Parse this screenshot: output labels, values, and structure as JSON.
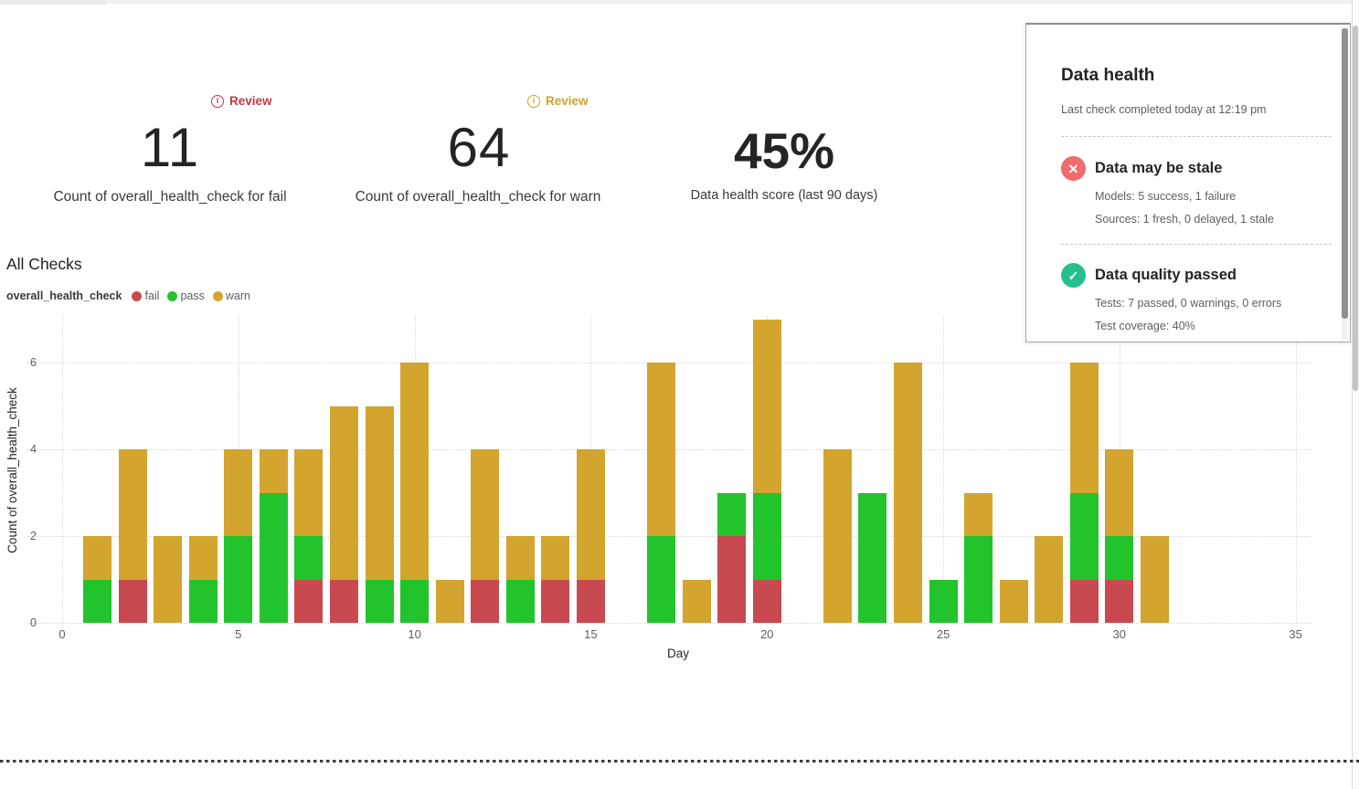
{
  "kpis": [
    {
      "badge": "Review",
      "badge_color": "#c13945",
      "value": "11",
      "label": "Count of overall_health_check for fail"
    },
    {
      "badge": "Review",
      "badge_color": "#cfa22a",
      "value": "64",
      "label": "Count of overall_health_check for warn"
    },
    {
      "value": "45%",
      "label": "Data health score (last 90 days)"
    }
  ],
  "chart": {
    "title": "All Checks",
    "series_label": "overall_health_check",
    "legend": [
      {
        "label": "fail",
        "color": "#c8494f"
      },
      {
        "label": "pass",
        "color": "#23c32b"
      },
      {
        "label": "warn",
        "color": "#d3a52e"
      }
    ],
    "xlabel": "Day",
    "ylabel": "Count of overall_health_check"
  },
  "chart_data": {
    "type": "bar",
    "stacked": true,
    "title": "All Checks",
    "xlabel": "Day",
    "ylabel": "Count of overall_health_check",
    "xlim": [
      0,
      35.5
    ],
    "ylim": [
      0,
      7
    ],
    "x_ticks": [
      0,
      5,
      10,
      15,
      20,
      25,
      30,
      35
    ],
    "y_ticks": [
      0,
      2,
      4,
      6
    ],
    "grid": true,
    "legend_position": "top-left",
    "categories": [
      1,
      2,
      3,
      4,
      5,
      6,
      7,
      8,
      9,
      10,
      11,
      12,
      13,
      14,
      15,
      16,
      17,
      18,
      19,
      20,
      21,
      22,
      23,
      24,
      25,
      26,
      27,
      28,
      29,
      30,
      31
    ],
    "series": [
      {
        "name": "fail",
        "color": "#c8494f",
        "values": [
          0,
          1,
          0,
          0,
          0,
          0,
          1,
          1,
          0,
          0,
          0,
          1,
          0,
          1,
          1,
          0,
          0,
          0,
          2,
          1,
          0,
          0,
          0,
          0,
          0,
          0,
          0,
          0,
          1,
          1,
          0
        ]
      },
      {
        "name": "pass",
        "color": "#23c32b",
        "values": [
          1,
          0,
          0,
          1,
          2,
          3,
          1,
          0,
          1,
          1,
          0,
          0,
          1,
          0,
          0,
          0,
          2,
          0,
          1,
          2,
          0,
          0,
          3,
          0,
          1,
          2,
          0,
          0,
          2,
          1,
          0
        ]
      },
      {
        "name": "warn",
        "color": "#d3a52e",
        "values": [
          1,
          3,
          2,
          1,
          2,
          1,
          2,
          4,
          4,
          5,
          1,
          3,
          1,
          1,
          3,
          0,
          4,
          1,
          0,
          4,
          0,
          4,
          0,
          6,
          0,
          1,
          1,
          2,
          3,
          2,
          2
        ]
      }
    ]
  },
  "panel": {
    "title": "Data health",
    "subtitle": "Last check completed today at 12:19 pm",
    "items": [
      {
        "status": "fail",
        "icon": "x-circle",
        "icon_color": "#ee6b6e",
        "icon_glyph": "✕",
        "title": "Data may be stale",
        "lines": [
          "Models: 5 success, 1 failure",
          "Sources: 1 fresh, 0 delayed, 1 stale"
        ]
      },
      {
        "status": "pass",
        "icon": "check-circle",
        "icon_color": "#26be8d",
        "icon_glyph": "✓",
        "title": "Data quality passed",
        "lines": [
          "Tests: 7 passed, 0 warnings, 0 errors",
          "Test coverage: 40%"
        ]
      }
    ]
  }
}
